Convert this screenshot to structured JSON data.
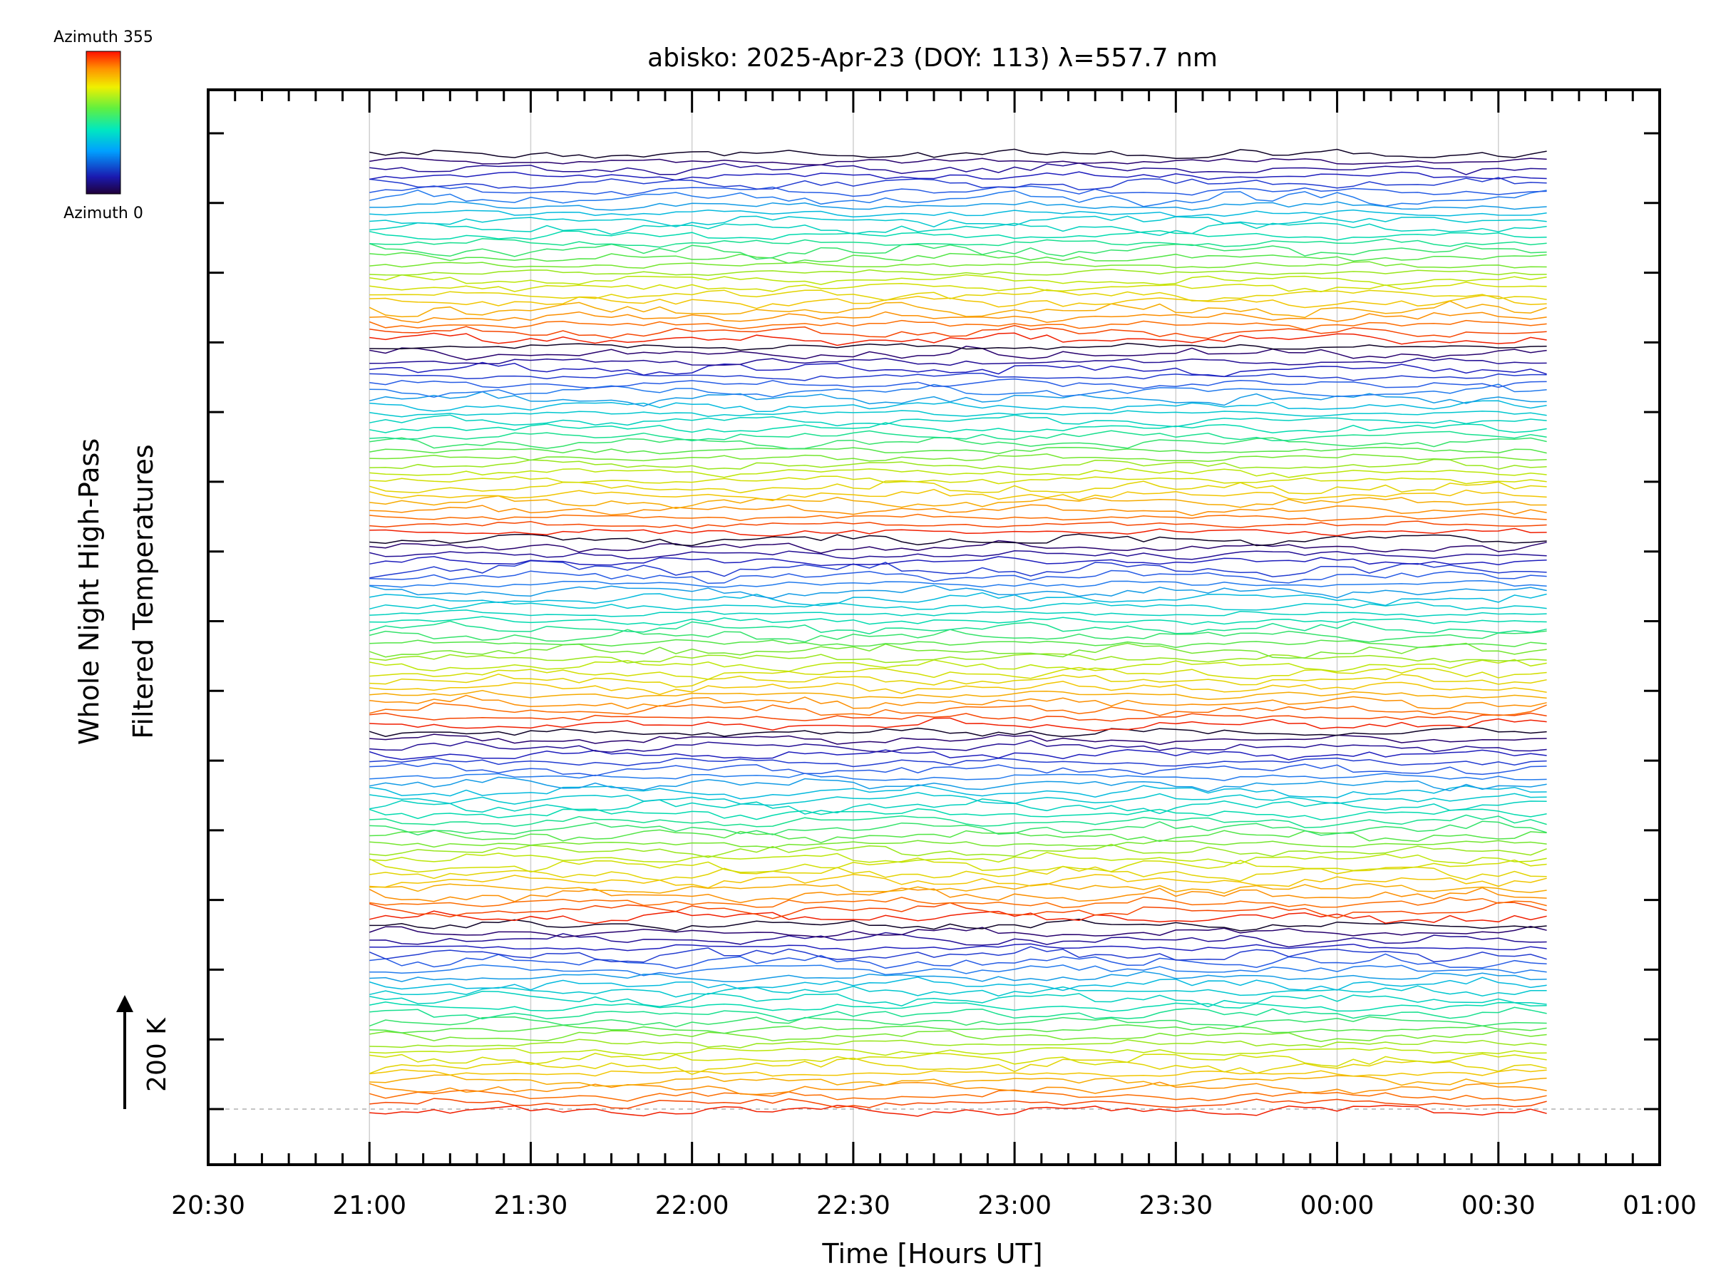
{
  "chart_data": {
    "type": "line",
    "title": "abisko: 2025-Apr-23 (DOY: 113) λ=557.7 nm",
    "xlabel": "Time [Hours UT]",
    "ylabel_line1": "Whole Night High-Pass",
    "ylabel_line2": "Filtered Temperatures",
    "x_tick_labels": [
      "20:30",
      "21:00",
      "21:30",
      "22:00",
      "22:30",
      "23:00",
      "23:30",
      "00:00",
      "00:30",
      "01:00"
    ],
    "x_range_hours": [
      20.5,
      25.0
    ],
    "data_x_range_hours": [
      21.0,
      24.65
    ],
    "y_tick_count": 15,
    "scale_label": "200 K",
    "colorbar": {
      "top_label": "Azimuth 355",
      "bottom_label": "Azimuth 0",
      "colormap": "rainbow"
    },
    "azimuth_cycle_deg": [
      0,
      355
    ],
    "series_count": 130,
    "series_note_visible": "stacked high-pass filtered temperature traces, color = azimuth",
    "grid": true,
    "colors": {
      "gridline": "#d0d0d0",
      "baseline": "#b0b0b0",
      "axis": "#000000"
    }
  }
}
